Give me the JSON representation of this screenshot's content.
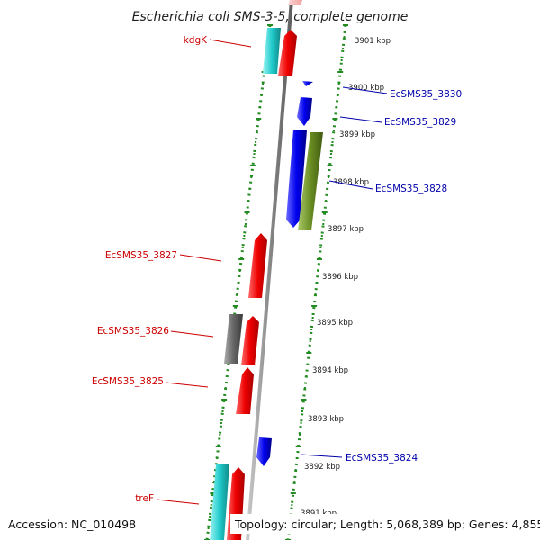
{
  "title": "Escherichia coli SMS-3-5, complete genome",
  "footer": {
    "accession": "Accession: NC_010498",
    "topology": "Topology: circular; Length: 5,068,389 bp; Genes: 4,855"
  },
  "ticks": [
    {
      "label": "3901 kbp"
    },
    {
      "label": "3900 kbp"
    },
    {
      "label": "3899 kbp"
    },
    {
      "label": "3898 kbp"
    },
    {
      "label": "3897 kbp"
    },
    {
      "label": "3896 kbp"
    },
    {
      "label": "3895 kbp"
    },
    {
      "label": "3894 kbp"
    },
    {
      "label": "3893 kbp"
    },
    {
      "label": "3892 kbp"
    },
    {
      "label": "3891 kbp"
    }
  ],
  "labels": [
    {
      "text": "kdgK",
      "color": "#cc0000"
    },
    {
      "text": "EcSMS35_3830",
      "color": "#0000aa"
    },
    {
      "text": "EcSMS35_3829",
      "color": "#0000aa"
    },
    {
      "text": "EcSMS35_3828",
      "color": "#0000aa"
    },
    {
      "text": "EcSMS35_3827",
      "color": "#cc0000"
    },
    {
      "text": "EcSMS35_3826",
      "color": "#cc0000"
    },
    {
      "text": "EcSMS35_3825",
      "color": "#cc0000"
    },
    {
      "text": "EcSMS35_3824",
      "color": "#0000aa"
    },
    {
      "text": "treF",
      "color": "#cc0000"
    }
  ],
  "colors": {
    "backbone": "#888888",
    "track_dots": "#228b22",
    "gene_forward": "#ee0000",
    "gene_reverse": "#0000ee",
    "rna": "#22cccc",
    "other": "#666666",
    "cds_other": "#6b8e23",
    "faded": "#f7b8b8"
  }
}
